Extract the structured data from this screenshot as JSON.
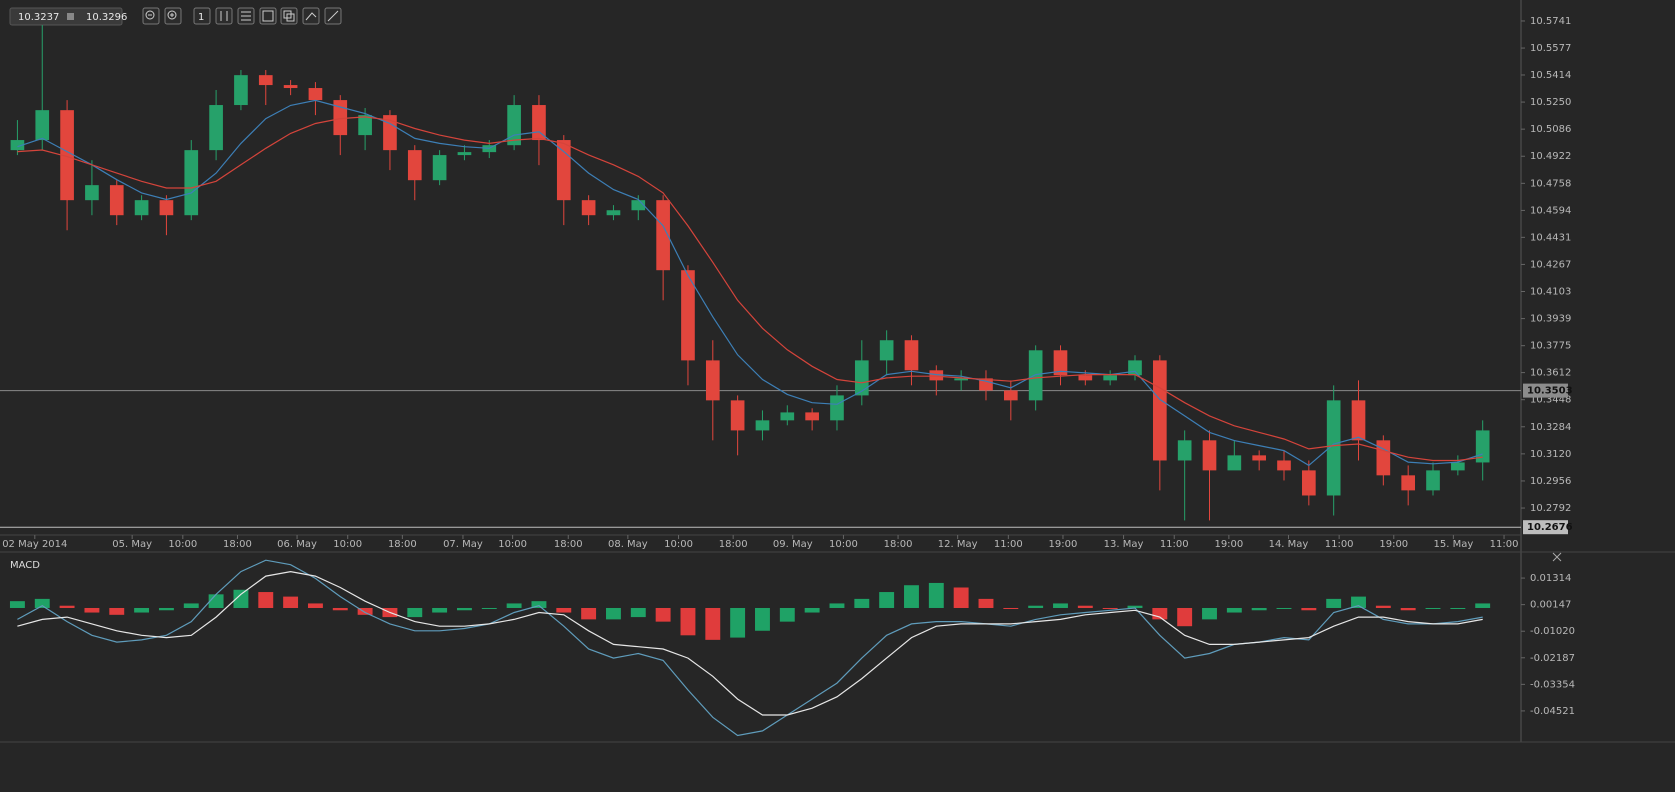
{
  "toolbar": {
    "bid": "10.3237",
    "ask": "10.3296",
    "interval": "1"
  },
  "chart_data": [
    {
      "type": "candlestick",
      "open": [
        10.4959,
        10.502,
        10.5201,
        10.4656,
        10.4747,
        10.4565,
        10.4656,
        10.4565,
        10.4959,
        10.5232,
        10.5413,
        10.5353,
        10.5335,
        10.5262,
        10.505,
        10.5171,
        10.4959,
        10.4777,
        10.4929,
        10.4947,
        10.4989,
        10.5232,
        10.502,
        10.4656,
        10.4565,
        10.4595,
        10.4656,
        10.4232,
        10.3686,
        10.3444,
        10.3262,
        10.3323,
        10.3371,
        10.3323,
        10.3474,
        10.3686,
        10.3808,
        10.3626,
        10.3565,
        10.3577,
        10.3504,
        10.3444,
        10.3747,
        10.3596,
        10.3565,
        10.3596,
        10.3686,
        10.308,
        10.3202,
        10.302,
        10.3111,
        10.308,
        10.302,
        10.2868,
        10.3444,
        10.3202,
        10.299,
        10.2899,
        10.302,
        10.3068
      ],
      "high": [
        10.5141,
        10.5716,
        10.5262,
        10.4898,
        10.4777,
        10.4686,
        10.4686,
        10.502,
        10.5323,
        10.5444,
        10.5444,
        10.5383,
        10.5371,
        10.5292,
        10.5214,
        10.5201,
        10.4989,
        10.4959,
        10.4989,
        10.502,
        10.5292,
        10.5292,
        10.505,
        10.4686,
        10.4626,
        10.4686,
        10.4686,
        10.4262,
        10.3808,
        10.3474,
        10.3383,
        10.3414,
        10.3396,
        10.3535,
        10.3808,
        10.3868,
        10.3838,
        10.3656,
        10.3626,
        10.3626,
        10.3565,
        10.3777,
        10.3777,
        10.3626,
        10.3626,
        10.3717,
        10.3717,
        10.3262,
        10.3262,
        10.3202,
        10.3141,
        10.3141,
        10.308,
        10.3535,
        10.3565,
        10.3232,
        10.305,
        10.3068,
        10.3111,
        10.3323
      ],
      "low": [
        10.4929,
        10.4959,
        10.4474,
        10.4565,
        10.4505,
        10.4535,
        10.4444,
        10.4535,
        10.4898,
        10.5201,
        10.5232,
        10.5292,
        10.5171,
        10.4929,
        10.4959,
        10.4838,
        10.4656,
        10.4747,
        10.4898,
        10.4911,
        10.4959,
        10.4868,
        10.4505,
        10.4505,
        10.4535,
        10.4535,
        10.405,
        10.3535,
        10.3202,
        10.3111,
        10.3202,
        10.3293,
        10.3262,
        10.3262,
        10.3414,
        10.3596,
        10.3535,
        10.3474,
        10.3504,
        10.3444,
        10.3323,
        10.3383,
        10.3535,
        10.3535,
        10.3535,
        10.3565,
        10.2899,
        10.2717,
        10.2717,
        10.305,
        10.302,
        10.2959,
        10.2808,
        10.2747,
        10.308,
        10.2929,
        10.2808,
        10.2868,
        10.299,
        10.2959
      ],
      "close": [
        10.502,
        10.5201,
        10.4656,
        10.4747,
        10.4565,
        10.4656,
        10.4565,
        10.4959,
        10.5232,
        10.5413,
        10.5353,
        10.5335,
        10.5262,
        10.505,
        10.5171,
        10.4959,
        10.4777,
        10.4929,
        10.4947,
        10.4989,
        10.5232,
        10.502,
        10.4656,
        10.4565,
        10.4595,
        10.4656,
        10.4232,
        10.3686,
        10.3444,
        10.3262,
        10.3323,
        10.3371,
        10.3323,
        10.3474,
        10.3686,
        10.3808,
        10.3626,
        10.3565,
        10.3577,
        10.3504,
        10.3444,
        10.3747,
        10.3596,
        10.3565,
        10.3596,
        10.3686,
        10.308,
        10.3202,
        10.302,
        10.3111,
        10.308,
        10.302,
        10.2868,
        10.3444,
        10.3202,
        10.299,
        10.2899,
        10.302,
        10.3068,
        10.3262
      ],
      "up_color": "#26a16a",
      "down_color": "#e2463d",
      "series": [
        {
          "color": "#3d7fb6",
          "values": [
            10.498,
            10.503,
            10.495,
            10.487,
            10.478,
            10.47,
            10.466,
            10.47,
            10.482,
            10.5,
            10.515,
            10.523,
            10.526,
            10.522,
            10.518,
            10.512,
            10.503,
            10.5,
            10.498,
            10.497,
            10.505,
            10.507,
            10.495,
            10.482,
            10.472,
            10.466,
            10.45,
            10.42,
            10.395,
            10.372,
            10.357,
            10.348,
            10.343,
            10.342,
            10.35,
            10.36,
            10.362,
            10.36,
            10.359,
            10.356,
            10.352,
            10.36,
            10.362,
            10.361,
            10.36,
            10.362,
            10.345,
            10.335,
            10.325,
            10.32,
            10.317,
            10.314,
            10.305,
            10.318,
            10.322,
            10.315,
            10.307,
            10.306,
            10.307,
            10.312
          ]
        },
        {
          "color": "#d4443b",
          "values": [
            10.495,
            10.496,
            10.492,
            10.487,
            10.482,
            10.477,
            10.473,
            10.473,
            10.477,
            10.487,
            10.497,
            10.506,
            10.512,
            10.515,
            10.516,
            10.514,
            10.509,
            10.505,
            10.502,
            10.5,
            10.502,
            10.503,
            10.5,
            10.493,
            10.487,
            10.48,
            10.47,
            10.45,
            10.428,
            10.405,
            10.388,
            10.375,
            10.365,
            10.357,
            10.355,
            10.358,
            10.359,
            10.359,
            10.358,
            10.357,
            10.356,
            10.358,
            10.359,
            10.36,
            10.36,
            10.36,
            10.352,
            10.343,
            10.335,
            10.329,
            10.325,
            10.321,
            10.315,
            10.317,
            10.318,
            10.314,
            10.31,
            10.308,
            10.308,
            10.31
          ]
        }
      ],
      "xlim": [
        -0.5,
        60.1
      ],
      "xticks": [
        {
          "value": 0.7,
          "label": "02 May 2014"
        },
        {
          "value": 4.62,
          "label": "05. May"
        },
        {
          "value": 6.66,
          "label": "10:00"
        },
        {
          "value": 8.86,
          "label": "18:00"
        },
        {
          "value": 11.26,
          "label": "06. May"
        },
        {
          "value": 13.3,
          "label": "10:00"
        },
        {
          "value": 15.5,
          "label": "18:00"
        },
        {
          "value": 17.94,
          "label": "07. May"
        },
        {
          "value": 19.94,
          "label": "10:00"
        },
        {
          "value": 22.18,
          "label": "18:00"
        },
        {
          "value": 24.58,
          "label": "08. May"
        },
        {
          "value": 26.62,
          "label": "10:00"
        },
        {
          "value": 28.82,
          "label": "18:00"
        },
        {
          "value": 31.22,
          "label": "09. May"
        },
        {
          "value": 33.26,
          "label": "10:00"
        },
        {
          "value": 35.46,
          "label": "18:00"
        },
        {
          "value": 37.86,
          "label": "12. May"
        },
        {
          "value": 39.9,
          "label": "11:00"
        },
        {
          "value": 42.1,
          "label": "19:00"
        },
        {
          "value": 44.54,
          "label": "13. May"
        },
        {
          "value": 46.58,
          "label": "11:00"
        },
        {
          "value": 48.78,
          "label": "19:00"
        },
        {
          "value": 51.18,
          "label": "14. May"
        },
        {
          "value": 53.22,
          "label": "11:00"
        },
        {
          "value": 55.42,
          "label": "19:00"
        },
        {
          "value": 57.82,
          "label": "15. May"
        },
        {
          "value": 59.86,
          "label": "11:00"
        }
      ],
      "ylim": [
        10.2659,
        10.5868
      ],
      "yticks": [
        10.5741,
        10.5577,
        10.5414,
        {
          "value": 10.525,
          "label": "10.5250"
        },
        10.5086,
        10.4922,
        10.4758,
        10.4594,
        10.4431,
        10.4267,
        10.4103,
        10.3939,
        10.3775,
        10.3612,
        10.3448,
        10.3284,
        {
          "value": 10.312,
          "label": "10.3120"
        },
        10.2956,
        10.2792
      ],
      "price_lines": [
        10.3503,
        10.2676
      ]
    },
    {
      "type": "macd",
      "title": "MACD",
      "histogram": {
        "up_color": "#1fa266",
        "down_color": "#e03c3c",
        "values": [
          0.003,
          0.004,
          0.001,
          -0.002,
          -0.003,
          -0.002,
          -0.001,
          0.002,
          0.006,
          0.008,
          0.007,
          0.005,
          0.002,
          -0.001,
          -0.003,
          -0.004,
          -0.004,
          -0.002,
          -0.001,
          0.0,
          0.002,
          0.003,
          -0.002,
          -0.005,
          -0.005,
          -0.004,
          -0.006,
          -0.012,
          -0.014,
          -0.013,
          -0.01,
          -0.006,
          -0.002,
          0.002,
          0.004,
          0.007,
          0.01,
          0.011,
          0.009,
          0.004,
          0.0,
          0.001,
          0.002,
          0.001,
          0.0,
          0.001,
          -0.005,
          -0.008,
          -0.005,
          -0.002,
          -0.001,
          0.0,
          -0.001,
          0.004,
          0.005,
          0.001,
          -0.001,
          0.0,
          0.0,
          0.002
        ]
      },
      "series": [
        {
          "color": "#5f9cbb",
          "values": [
            -0.005,
            0.001,
            -0.006,
            -0.012,
            -0.015,
            -0.014,
            -0.012,
            -0.006,
            0.006,
            0.016,
            0.021,
            0.019,
            0.013,
            0.005,
            -0.002,
            -0.007,
            -0.01,
            -0.01,
            -0.009,
            -0.007,
            -0.002,
            0.001,
            -0.008,
            -0.018,
            -0.022,
            -0.02,
            -0.023,
            -0.036,
            -0.048,
            -0.056,
            -0.054,
            -0.047,
            -0.04,
            -0.033,
            -0.022,
            -0.012,
            -0.007,
            -0.006,
            -0.006,
            -0.007,
            -0.008,
            -0.005,
            -0.003,
            -0.002,
            -0.001,
            0.0,
            -0.012,
            -0.022,
            -0.02,
            -0.016,
            -0.015,
            -0.013,
            -0.014,
            -0.002,
            0.001,
            -0.005,
            -0.007,
            -0.007,
            -0.006,
            -0.004
          ]
        },
        {
          "color": "#e6e6e6",
          "values": [
            -0.008,
            -0.005,
            -0.004,
            -0.007,
            -0.01,
            -0.012,
            -0.013,
            -0.012,
            -0.004,
            0.006,
            0.014,
            0.016,
            0.014,
            0.009,
            0.003,
            -0.002,
            -0.006,
            -0.008,
            -0.008,
            -0.007,
            -0.005,
            -0.002,
            -0.003,
            -0.01,
            -0.016,
            -0.017,
            -0.018,
            -0.022,
            -0.03,
            -0.04,
            -0.047,
            -0.047,
            -0.044,
            -0.039,
            -0.031,
            -0.022,
            -0.013,
            -0.008,
            -0.007,
            -0.007,
            -0.007,
            -0.006,
            -0.005,
            -0.003,
            -0.002,
            -0.001,
            -0.004,
            -0.012,
            -0.016,
            -0.016,
            -0.015,
            -0.014,
            -0.013,
            -0.008,
            -0.004,
            -0.004,
            -0.006,
            -0.007,
            -0.007,
            -0.005
          ]
        }
      ],
      "xlim": [
        -0.5,
        60.1
      ],
      "ylim": [
        -0.05798,
        0.02415
      ],
      "yticks": [
        0.01314,
        0.00147,
        {
          "value": -0.0102,
          "label": "-0.01020"
        },
        -0.02187,
        -0.03354,
        -0.04521
      ]
    }
  ]
}
